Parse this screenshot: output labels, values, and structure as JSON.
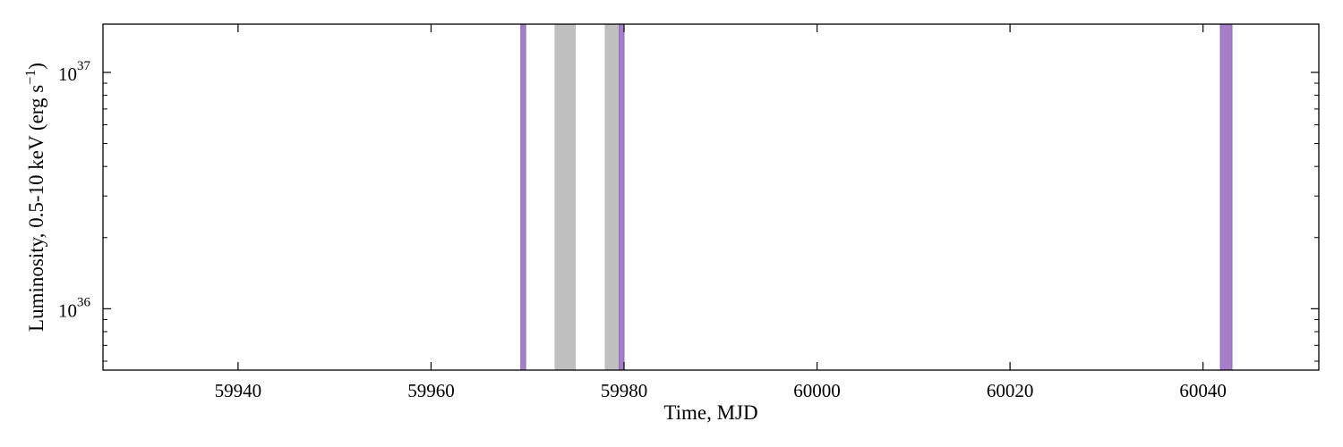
{
  "chart_data": {
    "type": "area",
    "xlabel": "Time, MJD",
    "ylabel": "Luminosity, 0.5-10 keV (erg s$^{-1}$)",
    "ylabel_main": "Luminosity, 0.5-10 keV (erg s",
    "ylabel_exp": "−1",
    "ylabel_close": ")",
    "xlim": [
      59926,
      60052
    ],
    "ylim": [
      5.5e+35,
      1.6e+37
    ],
    "yscale": "log",
    "x_ticks": [
      59940,
      59960,
      59980,
      60000,
      60020,
      60040
    ],
    "x_tick_labels": [
      "59940",
      "59960",
      "59980",
      "60000",
      "60020",
      "60040"
    ],
    "y_major_ticks": [
      1e+36,
      1e+37
    ],
    "y_tick_labels": [
      {
        "base": "10",
        "exp": "36"
      },
      {
        "base": "10",
        "exp": "37"
      }
    ],
    "y_minor_ticks": [
      6e+35,
      7e+35,
      8e+35,
      9e+35,
      2e+36,
      3e+36,
      4e+36,
      5e+36,
      6e+36,
      7e+36,
      8e+36,
      9e+36
    ],
    "grid": false,
    "legend": null,
    "shaded_intervals": [
      {
        "x0": 59969.3,
        "x1": 59969.8,
        "kind": "purple"
      },
      {
        "x0": 59972.8,
        "x1": 59975.0,
        "kind": "gray"
      },
      {
        "x0": 59978.0,
        "x1": 59979.5,
        "kind": "gray"
      },
      {
        "x0": 59979.5,
        "x1": 59980.0,
        "kind": "purple"
      },
      {
        "x0": 60041.8,
        "x1": 60043.0,
        "kind": "purple"
      }
    ],
    "colors": {
      "purple": "#9467bd",
      "gray": "#bfbfbf",
      "axes": "#000000"
    }
  }
}
